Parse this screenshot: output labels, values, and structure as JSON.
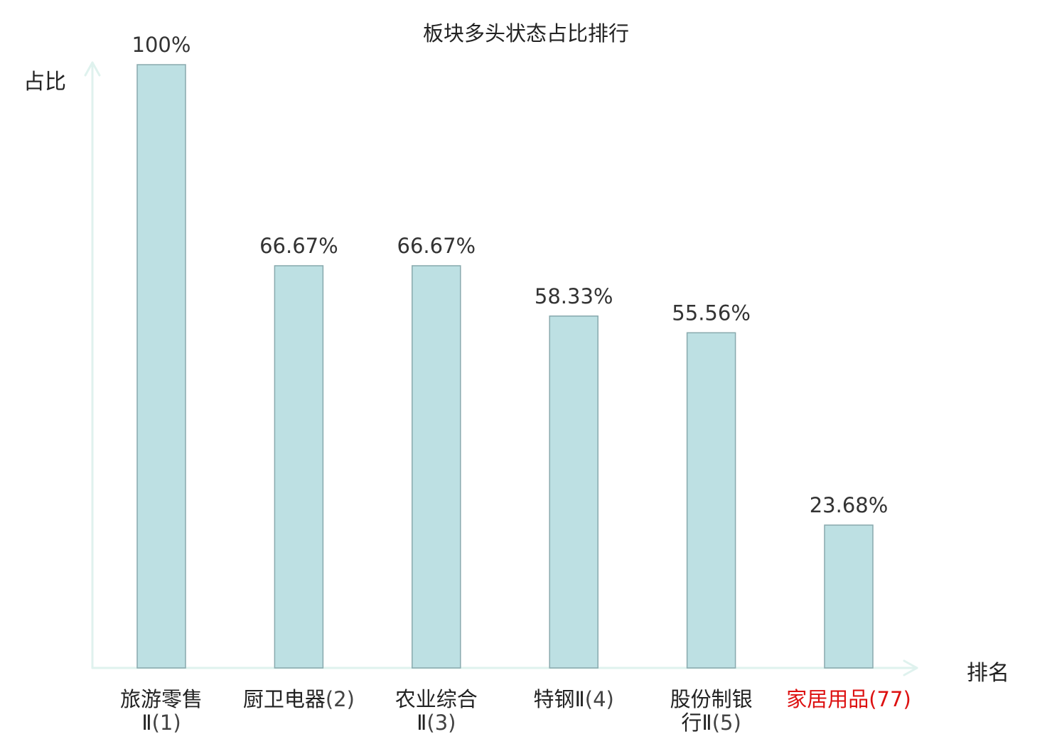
{
  "chart_data": {
    "type": "bar",
    "title": "板块多头状态占比排行",
    "xlabel": "排名",
    "ylabel": "占比",
    "ylim": [
      0,
      100
    ],
    "grid": false,
    "categories": [
      {
        "name_lines": [
          "旅游零售",
          "Ⅱ"
        ],
        "rank": "(1)",
        "highlight": false
      },
      {
        "name_lines": [
          "厨卫电器"
        ],
        "rank": "(2)",
        "highlight": false
      },
      {
        "name_lines": [
          "农业综合",
          "Ⅱ"
        ],
        "rank": "(3)",
        "highlight": false
      },
      {
        "name_lines": [
          "特钢Ⅱ"
        ],
        "rank": "(4)",
        "highlight": false
      },
      {
        "name_lines": [
          "股份制银",
          "行Ⅱ"
        ],
        "rank": "(5)",
        "highlight": false
      },
      {
        "name_lines": [
          "家居用品"
        ],
        "rank": "(77)",
        "highlight": true
      }
    ],
    "values": [
      100,
      66.67,
      66.67,
      58.33,
      55.56,
      23.68
    ],
    "value_labels": [
      "100%",
      "66.67%",
      "66.67%",
      "58.33%",
      "55.56%",
      "23.68%"
    ]
  },
  "colors": {
    "bar_fill": "#bde0e3",
    "bar_stroke": "#88a9ad",
    "axis": "#dff2ee",
    "text": "#222222",
    "value_label": "#333333",
    "highlight": "#dd1111"
  }
}
